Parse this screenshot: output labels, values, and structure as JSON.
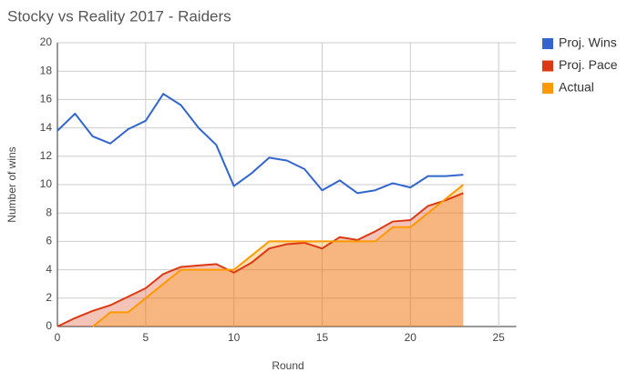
{
  "chart_data": {
    "type": "line",
    "title": "Stocky vs Reality 2017 - Raiders",
    "x_label": "Round",
    "y_label": "Number of wins",
    "x": [
      0,
      1,
      2,
      3,
      4,
      5,
      6,
      7,
      8,
      9,
      10,
      11,
      12,
      13,
      14,
      15,
      16,
      17,
      18,
      19,
      20,
      21,
      22,
      23
    ],
    "series": [
      {
        "name": "Proj. Wins",
        "color": "#3366cc",
        "fill": false,
        "values": [
          13.8,
          15.0,
          13.4,
          12.9,
          13.9,
          14.5,
          16.4,
          15.6,
          14.0,
          12.8,
          9.9,
          10.8,
          11.9,
          11.7,
          11.1,
          9.6,
          10.3,
          9.4,
          9.6,
          10.1,
          9.8,
          10.6,
          10.6,
          10.7
        ]
      },
      {
        "name": "Proj. Pace",
        "color": "#dc3912",
        "fill": true,
        "values": [
          0,
          0.6,
          1.1,
          1.5,
          2.1,
          2.7,
          3.7,
          4.2,
          4.3,
          4.4,
          3.8,
          4.5,
          5.5,
          5.8,
          5.9,
          5.5,
          6.3,
          6.1,
          6.7,
          7.4,
          7.5,
          8.5,
          8.9,
          9.4
        ]
      },
      {
        "name": "Actual",
        "color": "#ff9900",
        "fill": true,
        "values": [
          null,
          null,
          0,
          1,
          1,
          2,
          3,
          4,
          4,
          4,
          4,
          5,
          6,
          6,
          6,
          6,
          6,
          6,
          6,
          7,
          7,
          8,
          9,
          10
        ]
      }
    ],
    "xlim": [
      0,
      26
    ],
    "xticks": [
      0,
      5,
      10,
      15,
      20,
      25
    ],
    "ylim": [
      0,
      20
    ],
    "yticks": [
      0,
      2,
      4,
      6,
      8,
      10,
      12,
      14,
      16,
      18,
      20
    ],
    "grid": true,
    "legend": "right"
  }
}
